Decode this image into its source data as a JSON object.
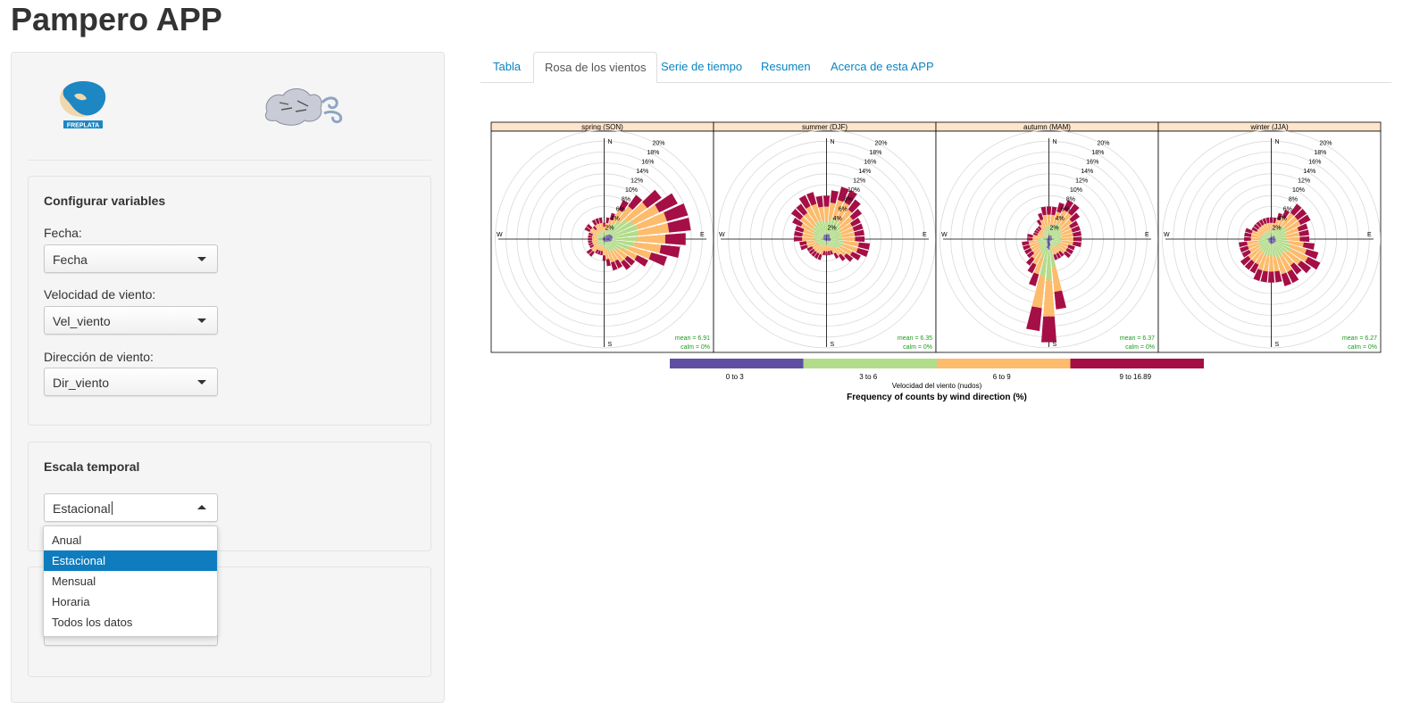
{
  "app": {
    "title": "Pampero APP"
  },
  "sidebar": {
    "logo_text": "FREPLATA",
    "panel1": {
      "title": "Configurar variables",
      "fecha_label": "Fecha:",
      "fecha_value": "Fecha",
      "vel_label": "Velocidad de viento:",
      "vel_value": "Vel_viento",
      "dir_label": "Dirección de viento:",
      "dir_value": "Dir_viento"
    },
    "panel2": {
      "title": "Escala temporal",
      "value": "Estacional",
      "options": [
        "Anual",
        "Estacional",
        "Mensual",
        "Horaria",
        "Todos los datos"
      ]
    }
  },
  "tabs": [
    "Tabla",
    "Rosa de los vientos",
    "Serie de tiempo",
    "Resumen",
    "Acerca de esta APP"
  ],
  "active_tab": "Rosa de los vientos",
  "chart_data": {
    "type": "wind-rose",
    "panels": [
      {
        "title": "spring (SON)",
        "mean": "mean = 6.91",
        "calm": "calm = 0%",
        "max": [
          3,
          4,
          5,
          8,
          10,
          13,
          15,
          16,
          16,
          15,
          14,
          12,
          9,
          7,
          7,
          6,
          6,
          5,
          4,
          3,
          3,
          3,
          4,
          4,
          3,
          3,
          3,
          3,
          3,
          3,
          4,
          4,
          3,
          4,
          4,
          4
        ]
      },
      {
        "title": "summer (DJF)",
        "mean": "mean = 6.35",
        "calm": "calm = 0%",
        "max": [
          8,
          9,
          10,
          10,
          9,
          8,
          7,
          7,
          7,
          7,
          8,
          8,
          7,
          6,
          5,
          4,
          3,
          3,
          3,
          3,
          4,
          4,
          4,
          4,
          4,
          5,
          5,
          6,
          6,
          6,
          7,
          8,
          8,
          9,
          9,
          8
        ]
      },
      {
        "title": "autumn (MAM)",
        "mean": "mean = 6.37",
        "calm": "calm = 0%",
        "max": [
          6,
          6,
          7,
          8,
          8,
          7,
          6,
          6,
          6,
          6,
          6,
          5,
          5,
          5,
          4,
          4,
          4,
          13,
          19,
          17,
          9,
          7,
          6,
          5,
          5,
          5,
          5,
          4,
          4,
          3,
          3,
          3,
          3,
          4,
          5,
          6
        ]
      },
      {
        "title": "winter (JJA)",
        "mean": "mean = 6.27",
        "calm": "calm = 0%",
        "max": [
          4,
          4,
          5,
          6,
          8,
          8,
          8,
          7,
          7,
          7,
          8,
          9,
          10,
          9,
          8,
          9,
          9,
          8,
          8,
          8,
          8,
          7,
          7,
          7,
          6,
          6,
          6,
          5,
          5,
          5,
          4,
          4,
          4,
          4,
          4,
          4
        ]
      }
    ],
    "rings": [
      "2%",
      "4%",
      "6%",
      "8%",
      "10%",
      "12%",
      "14%",
      "16%",
      "18%",
      "20%"
    ],
    "directions": [
      "N",
      "E",
      "S",
      "W"
    ],
    "speed_bins": [
      {
        "label": "0 to 3",
        "color": "#5e4fa2"
      },
      {
        "label": "3 to 6",
        "color": "#b3dc8a"
      },
      {
        "label": "6 to 9",
        "color": "#fdbb6c"
      },
      {
        "label": "9 to 16.89",
        "color": "#a50f45"
      }
    ],
    "legend_title": "Velocidad del viento (nudos)",
    "xlabel": "Frequency of counts by wind direction (%)",
    "ylim": [
      0,
      20
    ]
  }
}
